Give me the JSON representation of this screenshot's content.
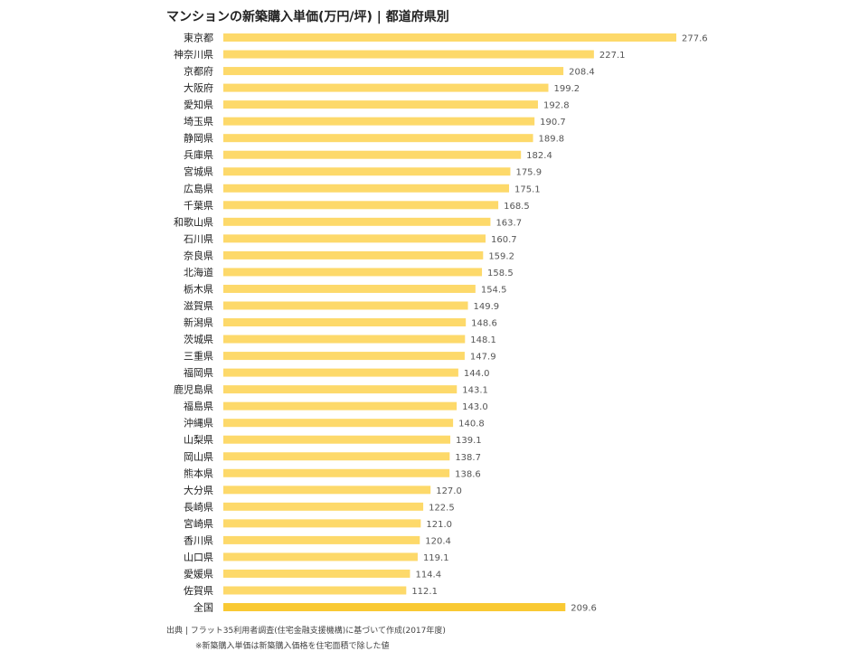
{
  "title": "マンションの新築購入単価(万円/坪) | 都道府県別",
  "source": "出典 | フラット35利用者調査(住宅金融支援機構)に基づいて作成(2017年度)",
  "note": "※新築購入単価は新築購入価格を住宅面積で除した値",
  "colors": {
    "bar": "#FDD96A",
    "bar_total": "#F9C933",
    "label": "#222222",
    "value": "#555555"
  },
  "chart_data": {
    "type": "bar",
    "orientation": "horizontal",
    "title": "マンションの新築購入単価(万円/坪) | 都道府県別",
    "xlabel": "",
    "ylabel": "",
    "categories": [
      "東京都",
      "神奈川県",
      "京都府",
      "大阪府",
      "愛知県",
      "埼玉県",
      "静岡県",
      "兵庫県",
      "宮城県",
      "広島県",
      "千葉県",
      "和歌山県",
      "石川県",
      "奈良県",
      "北海道",
      "栃木県",
      "滋賀県",
      "新潟県",
      "茨城県",
      "三重県",
      "福岡県",
      "鹿児島県",
      "福島県",
      "沖縄県",
      "山梨県",
      "岡山県",
      "熊本県",
      "大分県",
      "長崎県",
      "宮崎県",
      "香川県",
      "山口県",
      "愛媛県",
      "佐賀県",
      "全国"
    ],
    "values": [
      277.6,
      227.1,
      208.4,
      199.2,
      192.8,
      190.7,
      189.8,
      182.4,
      175.9,
      175.1,
      168.5,
      163.7,
      160.7,
      159.2,
      158.5,
      154.5,
      149.9,
      148.6,
      148.1,
      147.9,
      144.0,
      143.1,
      143.0,
      140.8,
      139.1,
      138.7,
      138.6,
      127.0,
      122.5,
      121.0,
      120.4,
      119.1,
      114.4,
      112.1,
      209.6
    ],
    "value_labels": [
      "277.6",
      "227.1",
      "208.4",
      "199.2",
      "192.8",
      "190.7",
      "189.8",
      "182.4",
      "175.9",
      "175.1",
      "168.5",
      "163.7",
      "160.7",
      "159.2",
      "158.5",
      "154.5",
      "149.9",
      "148.6",
      "148.1",
      "147.9",
      "144.0",
      "143.1",
      "143.0",
      "140.8",
      "139.1",
      "138.7",
      "138.6",
      "127.0",
      "122.5",
      "121.0",
      "120.4",
      "119.1",
      "114.4",
      "112.1",
      "209.6"
    ],
    "xlim": [
      0,
      277.6
    ],
    "grid": false,
    "legend": "none"
  }
}
